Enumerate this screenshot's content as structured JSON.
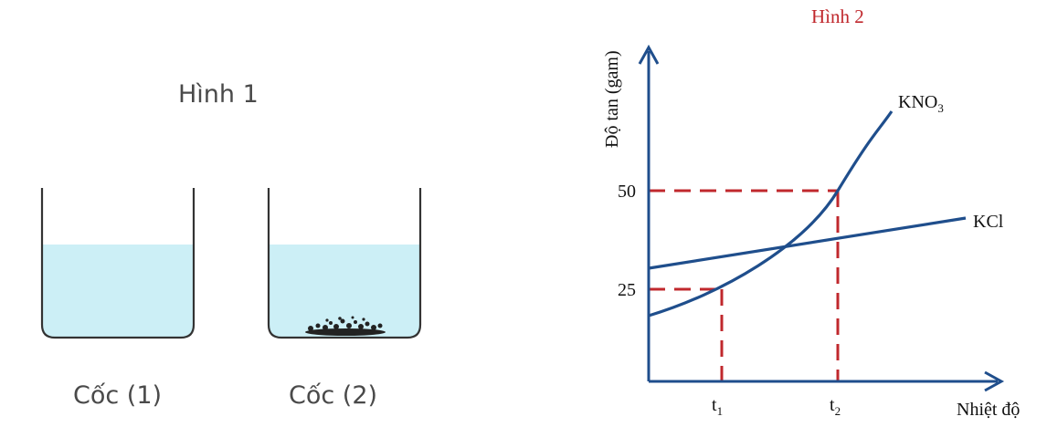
{
  "figure1": {
    "title": "Hình 1",
    "cups": [
      {
        "label": "Cốc (1)",
        "has_precipitate": false
      },
      {
        "label": "Cốc (2)",
        "has_precipitate": true
      }
    ],
    "colors": {
      "water": "#cceff6",
      "glass": "#333333",
      "precipitate": "#222222"
    }
  },
  "figure2": {
    "title": "Hình 2",
    "y_axis_label": "Độ tan (gam)",
    "x_axis_label": "Nhiệt độ",
    "y_ticks": [
      "50",
      "25"
    ],
    "x_ticks": [
      {
        "base": "t",
        "sub": "1"
      },
      {
        "base": "t",
        "sub": "2"
      }
    ],
    "curves": [
      {
        "name_base": "KNO",
        "name_sub": "3",
        "shape": "rising-convex"
      },
      {
        "name_base": "KCl",
        "name_sub": "",
        "shape": "linear"
      }
    ],
    "colors": {
      "curve": "#1f4e8c",
      "axis": "#1f4e8c",
      "guide": "#c0282d",
      "title": "#c0282d"
    }
  }
}
